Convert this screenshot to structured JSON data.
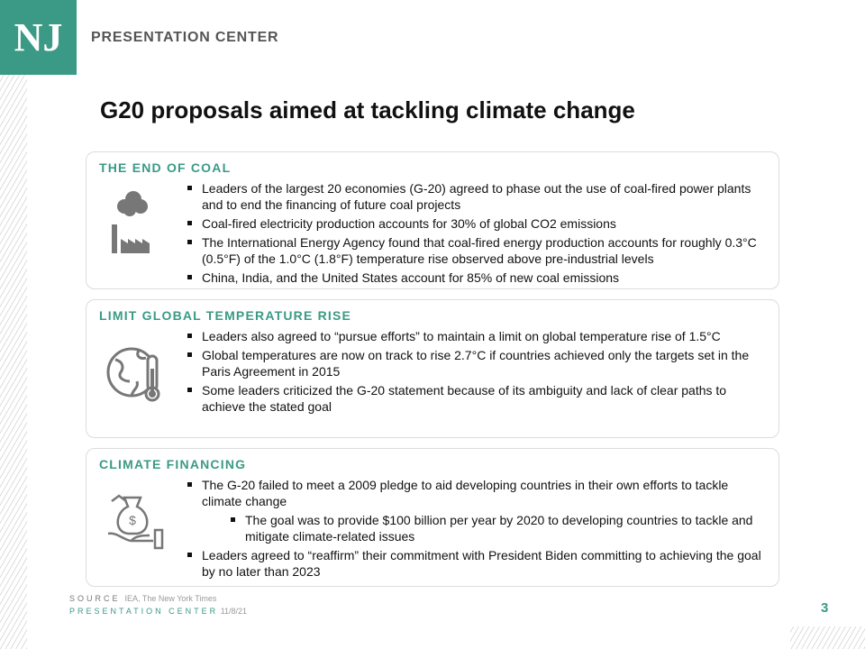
{
  "header": {
    "logo": "NJ",
    "brand": "PRESENTATION CENTER"
  },
  "title": "G20 proposals aimed at tackling climate change",
  "sections": [
    {
      "heading": "THE END OF COAL",
      "bullets": [
        {
          "text": "Leaders of the largest 20 economies (G-20) agreed to phase out the use of coal-fired power plants and to end the financing of future coal projects"
        },
        {
          "text": "Coal-fired electricity production accounts for 30% of global CO2 emissions"
        },
        {
          "text": "The International Energy Agency found that coal-fired energy production accounts for roughly 0.3°C (0.5°F) of the 1.0°C (1.8°F) temperature rise observed above pre-industrial levels"
        },
        {
          "text": "China, India, and the United States account for 85% of new coal emissions"
        }
      ]
    },
    {
      "heading": "LIMIT GLOBAL TEMPERATURE RISE",
      "bullets": [
        {
          "text": "Leaders also agreed to “pursue efforts” to maintain a limit on global temperature rise of 1.5°C"
        },
        {
          "text": "Global temperatures are now on track to rise 2.7°C if countries achieved only the targets set in the Paris Agreement in 2015"
        },
        {
          "text": "Some leaders criticized the G-20 statement because of its ambiguity and lack of clear paths to achieve the stated goal"
        }
      ]
    },
    {
      "heading": "CLIMATE FINANCING",
      "bullets": [
        {
          "text": "The G-20 failed to meet a 2009 pledge to aid developing countries in their own efforts to tackle climate change",
          "sub": [
            "The goal was to provide $100 billion per year by 2020 to developing countries to tackle and mitigate climate-related issues"
          ]
        },
        {
          "text": "Leaders agreed to “reaffirm” their commitment with President Biden committing to achieving the goal by no later than 2023"
        }
      ]
    }
  ],
  "footer": {
    "source_label": "SOURCE",
    "source": "IEA, The New York Times",
    "center": "PRESENTATION CENTER",
    "date": "11/8/21",
    "page": "3"
  }
}
